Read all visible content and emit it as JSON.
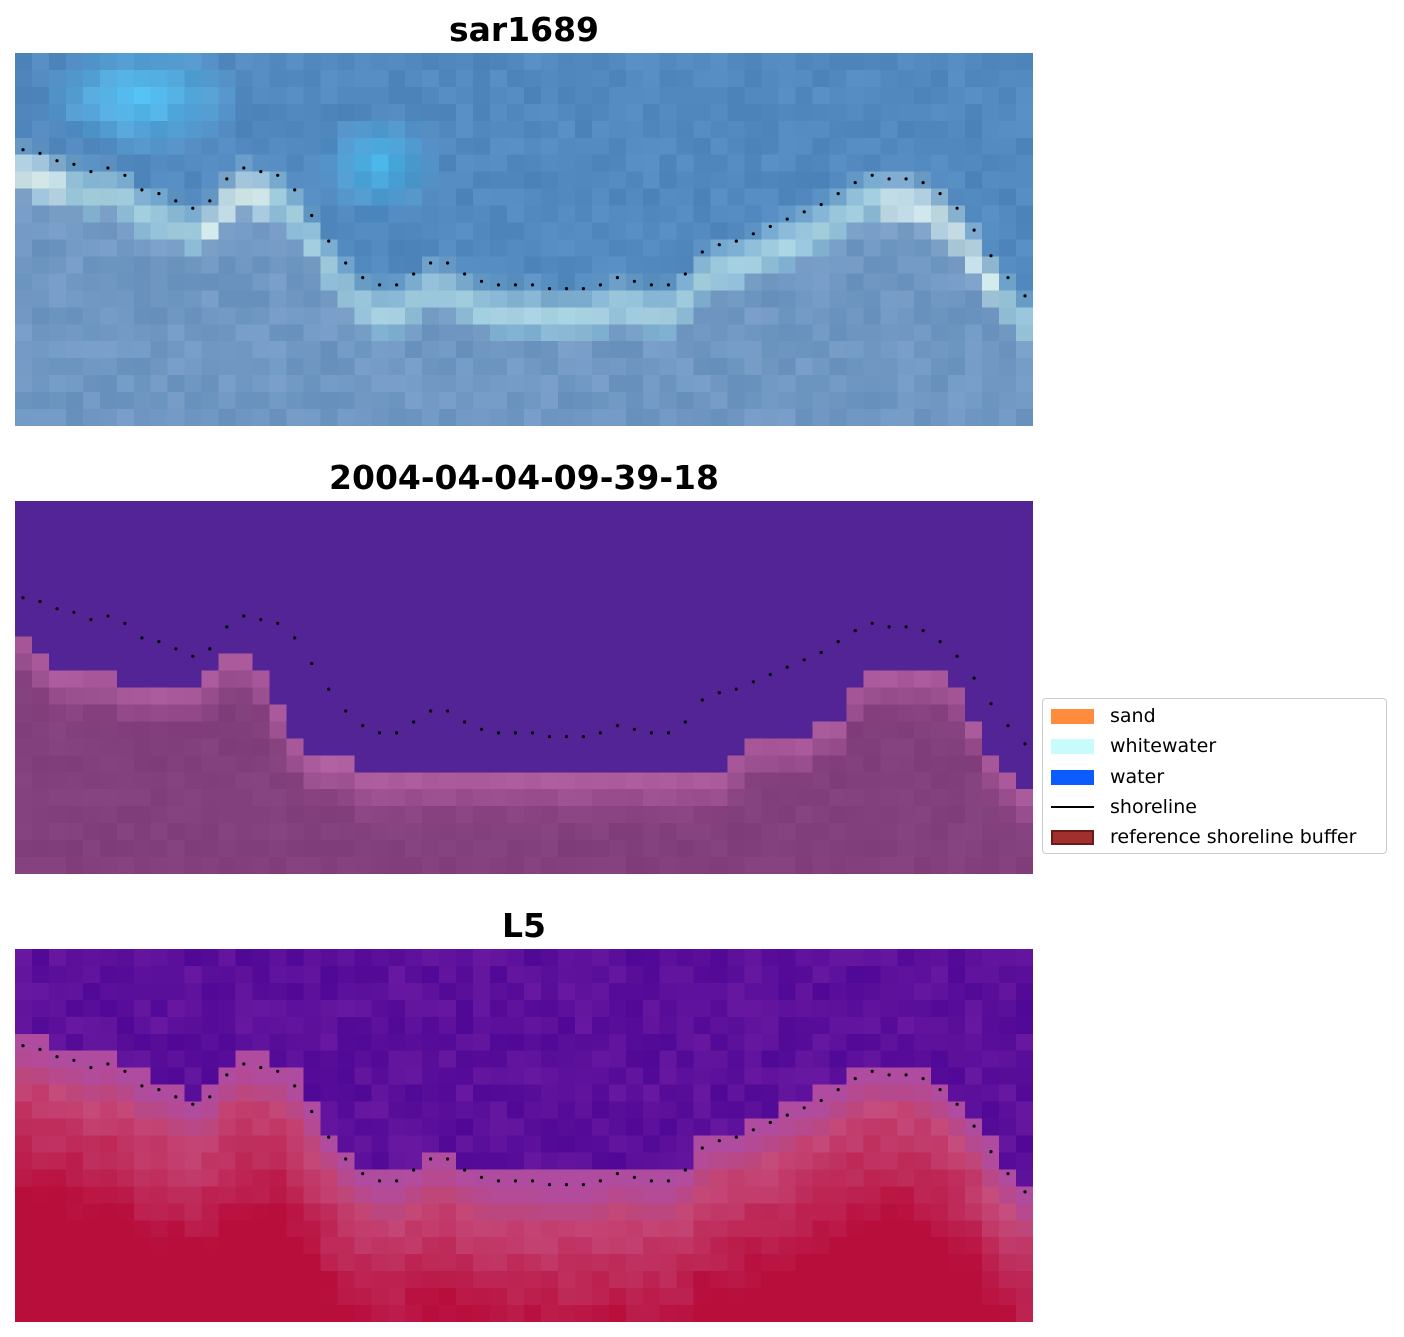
{
  "panels": [
    {
      "title": "sar1689",
      "kind": "rgb"
    },
    {
      "title": "2004-04-04-09-39-18",
      "kind": "classified"
    },
    {
      "title": "L5",
      "kind": "index"
    }
  ],
  "legend": {
    "items": [
      {
        "label": "sand",
        "color": "#ff8c3c",
        "type": "patch"
      },
      {
        "label": "whitewater",
        "color": "#c8fcfc",
        "type": "patch"
      },
      {
        "label": "water",
        "color": "#0a5cff",
        "type": "patch"
      },
      {
        "label": "shoreline",
        "color": "#000000",
        "type": "line"
      },
      {
        "label": "reference shoreline buffer",
        "color": "#a0302c",
        "type": "patch"
      }
    ]
  },
  "chart_data": {
    "type": "image",
    "grid": false,
    "legend_position": "right",
    "shoreline_samples": 60,
    "shoreline_y": [
      0.27,
      0.28,
      0.3,
      0.31,
      0.33,
      0.32,
      0.34,
      0.38,
      0.39,
      0.41,
      0.43,
      0.41,
      0.35,
      0.32,
      0.33,
      0.34,
      0.38,
      0.45,
      0.52,
      0.58,
      0.62,
      0.64,
      0.64,
      0.61,
      0.58,
      0.58,
      0.61,
      0.63,
      0.64,
      0.64,
      0.64,
      0.65,
      0.65,
      0.65,
      0.64,
      0.62,
      0.63,
      0.64,
      0.64,
      0.61,
      0.55,
      0.53,
      0.52,
      0.5,
      0.48,
      0.46,
      0.44,
      0.42,
      0.39,
      0.36,
      0.34,
      0.35,
      0.35,
      0.36,
      0.39,
      0.43,
      0.49,
      0.56,
      0.62,
      0.67
    ],
    "classified_land_top": [
      0.36,
      0.42,
      0.46,
      0.46,
      0.46,
      0.46,
      0.5,
      0.5,
      0.5,
      0.5,
      0.5,
      0.46,
      0.41,
      0.41,
      0.46,
      0.55,
      0.64,
      0.69,
      0.7,
      0.7,
      0.74,
      0.74,
      0.74,
      0.74,
      0.74,
      0.74,
      0.74,
      0.74,
      0.74,
      0.74,
      0.74,
      0.74,
      0.74,
      0.74,
      0.74,
      0.74,
      0.74,
      0.74,
      0.74,
      0.74,
      0.74,
      0.74,
      0.69,
      0.64,
      0.64,
      0.64,
      0.64,
      0.59,
      0.59,
      0.5,
      0.46,
      0.46,
      0.46,
      0.46,
      0.46,
      0.5,
      0.59,
      0.69,
      0.74,
      0.77
    ]
  }
}
